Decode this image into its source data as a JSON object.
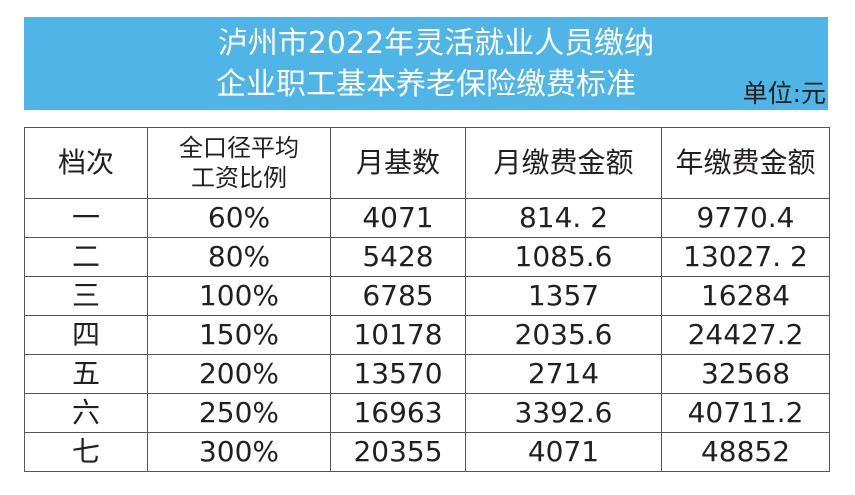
{
  "title": {
    "line1": "泸州市2022年灵活就业人员缴纳",
    "line2": "企业职工基本养老保险缴费标准",
    "unit": "单位:元"
  },
  "colors": {
    "banner": "#4fb4e6",
    "title_text": "#ffffff"
  },
  "table": {
    "headers": [
      "档次",
      "全口径平均\n工资比例",
      "月基数",
      "月缴费金额",
      "年缴费金额"
    ],
    "header_ratio_line1": "全口径平均",
    "header_ratio_line2": "工资比例",
    "rows": [
      [
        "一",
        "60%",
        "4071",
        "814. 2",
        "9770.4"
      ],
      [
        "二",
        "80%",
        "5428",
        "1085.6",
        "13027. 2"
      ],
      [
        "三",
        "100%",
        "6785",
        "1357",
        "16284"
      ],
      [
        "四",
        "150%",
        "10178",
        "2035.6",
        "24427.2"
      ],
      [
        "五",
        "200%",
        "13570",
        "2714",
        "32568"
      ],
      [
        "六",
        "250%",
        "16963",
        "3392.6",
        "40711.2"
      ],
      [
        "七",
        "300%",
        "20355",
        "4071",
        "48852"
      ]
    ]
  }
}
